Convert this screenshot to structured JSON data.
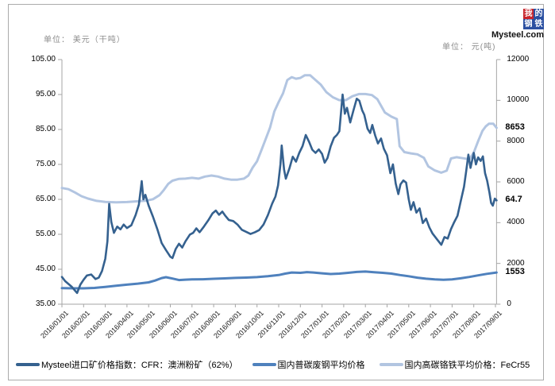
{
  "units": {
    "left": "单位： 美元（干吨）",
    "right": "单位： 元(吨)"
  },
  "logo": {
    "chars": [
      "我",
      "的",
      "钢",
      "铁"
    ],
    "domain": "Mysteel.com",
    "red": "#c8252c",
    "blue": "#2b50a1"
  },
  "colors": {
    "axis": "#a6a6a6",
    "frame": "#ababab",
    "series_dark": "#35618f",
    "series_medium": "#4f81bd",
    "series_light": "#b2c5e1"
  },
  "chart_data": {
    "type": "line",
    "grid": false,
    "legend_position": "bottom",
    "x_axis": {
      "labels": [
        "2016/01/01",
        "2016/02/01",
        "2016/03/01",
        "2016/04/01",
        "2016/05/01",
        "2016/06/01",
        "2016/07/01",
        "2016/08/01",
        "2016/09/01",
        "2016/10/01",
        "2016/11/01",
        "2016/12/01",
        "2017/01/01",
        "2017/02/01",
        "2017/03/01",
        "2017/04/01",
        "2017/05/01",
        "2017/06/01",
        "2017/07/01",
        "2017/08/01",
        "2017/09/01"
      ],
      "note_x_in_months_from_2016_01": true
    },
    "y_left": {
      "min": 35,
      "max": 105,
      "ticks": [
        "105.00",
        "95.00",
        "85.00",
        "75.00",
        "65.00",
        "55.00",
        "45.00",
        "35.00"
      ],
      "tick_values": [
        105,
        95,
        85,
        75,
        65,
        55,
        45,
        35
      ]
    },
    "y_right": {
      "min": 0,
      "max": 12000,
      "ticks": [
        "12000",
        "10000",
        "8000",
        "6000",
        "4000",
        "2000",
        "0"
      ],
      "tick_values": [
        12000,
        10000,
        8000,
        6000,
        4000,
        2000,
        0
      ]
    },
    "series": [
      {
        "name": "国内高碳铬铁平均价格：FeCr55",
        "axis": "right",
        "color": "#b2c5e1",
        "width": 3,
        "end_label": "8653",
        "points": [
          [
            0,
            5700
          ],
          [
            0.3,
            5640
          ],
          [
            0.6,
            5480
          ],
          [
            0.9,
            5300
          ],
          [
            1.2,
            5180
          ],
          [
            1.6,
            5070
          ],
          [
            2,
            5020
          ],
          [
            2.5,
            5000
          ],
          [
            3,
            5010
          ],
          [
            3.5,
            5050
          ],
          [
            3.9,
            5080
          ],
          [
            4.2,
            5150
          ],
          [
            4.5,
            5350
          ],
          [
            4.7,
            5600
          ],
          [
            4.9,
            5900
          ],
          [
            5.1,
            6060
          ],
          [
            5.4,
            6150
          ],
          [
            5.7,
            6160
          ],
          [
            6,
            6200
          ],
          [
            6.3,
            6160
          ],
          [
            6.6,
            6260
          ],
          [
            6.9,
            6310
          ],
          [
            7.2,
            6260
          ],
          [
            7.5,
            6160
          ],
          [
            7.8,
            6110
          ],
          [
            8.1,
            6110
          ],
          [
            8.4,
            6160
          ],
          [
            8.6,
            6310
          ],
          [
            8.8,
            6700
          ],
          [
            9,
            7010
          ],
          [
            9.2,
            7550
          ],
          [
            9.4,
            8100
          ],
          [
            9.6,
            8660
          ],
          [
            9.8,
            9450
          ],
          [
            10,
            9920
          ],
          [
            10.2,
            10350
          ],
          [
            10.4,
            11000
          ],
          [
            10.6,
            11140
          ],
          [
            10.8,
            11060
          ],
          [
            11,
            11100
          ],
          [
            11.2,
            11230
          ],
          [
            11.45,
            11230
          ],
          [
            11.7,
            11000
          ],
          [
            11.95,
            10760
          ],
          [
            12.2,
            10400
          ],
          [
            12.5,
            10150
          ],
          [
            12.8,
            10010
          ],
          [
            13.1,
            10010
          ],
          [
            13.4,
            10200
          ],
          [
            13.7,
            10310
          ],
          [
            14,
            10310
          ],
          [
            14.3,
            10260
          ],
          [
            14.55,
            10060
          ],
          [
            14.9,
            9400
          ],
          [
            15.2,
            9200
          ],
          [
            15.45,
            9080
          ],
          [
            15.58,
            7750
          ],
          [
            15.8,
            7460
          ],
          [
            16.1,
            7400
          ],
          [
            16.4,
            7350
          ],
          [
            16.7,
            7180
          ],
          [
            16.9,
            6760
          ],
          [
            17.2,
            6560
          ],
          [
            17.5,
            6450
          ],
          [
            17.75,
            6550
          ],
          [
            17.95,
            7150
          ],
          [
            18.2,
            7210
          ],
          [
            18.5,
            7160
          ],
          [
            18.8,
            7110
          ],
          [
            19,
            7440
          ],
          [
            19.2,
            8000
          ],
          [
            19.4,
            8500
          ],
          [
            19.55,
            8720
          ],
          [
            19.7,
            8850
          ],
          [
            19.9,
            8850
          ],
          [
            20.05,
            8653
          ]
        ]
      },
      {
        "name": "国内普碳废钢平均价格",
        "axis": "right",
        "color": "#4f81bd",
        "width": 3,
        "end_label": "1553",
        "points": [
          [
            0,
            790
          ],
          [
            0.5,
            780
          ],
          [
            1,
            780
          ],
          [
            1.5,
            800
          ],
          [
            2,
            850
          ],
          [
            2.5,
            905
          ],
          [
            3,
            960
          ],
          [
            3.5,
            1010
          ],
          [
            4,
            1070
          ],
          [
            4.3,
            1160
          ],
          [
            4.6,
            1280
          ],
          [
            4.8,
            1325
          ],
          [
            5.1,
            1260
          ],
          [
            5.4,
            1185
          ],
          [
            5.7,
            1205
          ],
          [
            6,
            1215
          ],
          [
            6.5,
            1225
          ],
          [
            7,
            1245
          ],
          [
            7.5,
            1265
          ],
          [
            8,
            1290
          ],
          [
            8.5,
            1305
          ],
          [
            9,
            1330
          ],
          [
            9.5,
            1370
          ],
          [
            10,
            1430
          ],
          [
            10.3,
            1500
          ],
          [
            10.6,
            1555
          ],
          [
            11,
            1540
          ],
          [
            11.3,
            1575
          ],
          [
            11.6,
            1555
          ],
          [
            12,
            1515
          ],
          [
            12.4,
            1480
          ],
          [
            12.8,
            1500
          ],
          [
            13.2,
            1540
          ],
          [
            13.6,
            1580
          ],
          [
            14,
            1600
          ],
          [
            14.4,
            1570
          ],
          [
            14.8,
            1540
          ],
          [
            15.2,
            1500
          ],
          [
            15.6,
            1430
          ],
          [
            16,
            1370
          ],
          [
            16.4,
            1300
          ],
          [
            16.8,
            1250
          ],
          [
            17.2,
            1215
          ],
          [
            17.6,
            1195
          ],
          [
            18,
            1220
          ],
          [
            18.4,
            1270
          ],
          [
            18.8,
            1335
          ],
          [
            19.2,
            1415
          ],
          [
            19.6,
            1490
          ],
          [
            20.05,
            1553
          ]
        ]
      },
      {
        "name": "Mysteel进口矿价格指数：CFR：澳洲粉矿（62%）",
        "axis": "left",
        "color": "#35618f",
        "width": 2.6,
        "end_label": "64.7",
        "points": [
          [
            0,
            42.8
          ],
          [
            0.15,
            41.6
          ],
          [
            0.3,
            40.8
          ],
          [
            0.45,
            40
          ],
          [
            0.6,
            38.9
          ],
          [
            0.7,
            38.2
          ],
          [
            0.85,
            40.6
          ],
          [
            1,
            42
          ],
          [
            1.15,
            43.2
          ],
          [
            1.35,
            43.5
          ],
          [
            1.55,
            42.2
          ],
          [
            1.7,
            42.6
          ],
          [
            1.85,
            44.5
          ],
          [
            2,
            48
          ],
          [
            2.1,
            53
          ],
          [
            2.18,
            63.7
          ],
          [
            2.28,
            58.5
          ],
          [
            2.4,
            55.4
          ],
          [
            2.55,
            57.2
          ],
          [
            2.7,
            56.4
          ],
          [
            2.85,
            57.8
          ],
          [
            3,
            56.8
          ],
          [
            3.2,
            57.6
          ],
          [
            3.4,
            60.5
          ],
          [
            3.55,
            63.5
          ],
          [
            3.68,
            70.2
          ],
          [
            3.76,
            65
          ],
          [
            3.85,
            66.3
          ],
          [
            4,
            63.2
          ],
          [
            4.2,
            60
          ],
          [
            4.4,
            56.5
          ],
          [
            4.6,
            52.5
          ],
          [
            4.8,
            50.5
          ],
          [
            5,
            48.6
          ],
          [
            5.1,
            48.2
          ],
          [
            5.25,
            50.8
          ],
          [
            5.4,
            52.3
          ],
          [
            5.55,
            51.2
          ],
          [
            5.7,
            53
          ],
          [
            5.9,
            54.9
          ],
          [
            6.05,
            55.4
          ],
          [
            6.2,
            56.7
          ],
          [
            6.35,
            55.6
          ],
          [
            6.55,
            57.2
          ],
          [
            6.75,
            59
          ],
          [
            6.95,
            61
          ],
          [
            7.1,
            61.8
          ],
          [
            7.25,
            60.6
          ],
          [
            7.4,
            61.5
          ],
          [
            7.55,
            60.2
          ],
          [
            7.7,
            59.1
          ],
          [
            7.9,
            58.8
          ],
          [
            8.1,
            57.8
          ],
          [
            8.3,
            56.3
          ],
          [
            8.5,
            55.7
          ],
          [
            8.7,
            55.1
          ],
          [
            8.9,
            55.6
          ],
          [
            9.1,
            56.2
          ],
          [
            9.3,
            57.8
          ],
          [
            9.5,
            60.5
          ],
          [
            9.7,
            63.8
          ],
          [
            9.85,
            65.8
          ],
          [
            9.97,
            69
          ],
          [
            10.08,
            75
          ],
          [
            10.14,
            80.4
          ],
          [
            10.25,
            73.5
          ],
          [
            10.33,
            70.9
          ],
          [
            10.5,
            74
          ],
          [
            10.65,
            77.2
          ],
          [
            10.8,
            75.8
          ],
          [
            10.95,
            78.3
          ],
          [
            11.1,
            80.2
          ],
          [
            11.25,
            83.4
          ],
          [
            11.4,
            81.5
          ],
          [
            11.55,
            79.2
          ],
          [
            11.7,
            78.3
          ],
          [
            11.85,
            79.3
          ],
          [
            12,
            78
          ],
          [
            12.12,
            75.5
          ],
          [
            12.25,
            76.8
          ],
          [
            12.4,
            80.2
          ],
          [
            12.55,
            82.6
          ],
          [
            12.68,
            83.4
          ],
          [
            12.8,
            84.5
          ],
          [
            12.95,
            95
          ],
          [
            13.05,
            89.5
          ],
          [
            13.15,
            91.2
          ],
          [
            13.3,
            87
          ],
          [
            13.45,
            90.5
          ],
          [
            13.6,
            93.8
          ],
          [
            13.72,
            93.2
          ],
          [
            13.85,
            90.5
          ],
          [
            13.95,
            89.2
          ],
          [
            14.1,
            85.2
          ],
          [
            14.22,
            84
          ],
          [
            14.32,
            86.3
          ],
          [
            14.45,
            83.3
          ],
          [
            14.58,
            81
          ],
          [
            14.72,
            82.4
          ],
          [
            14.85,
            79.5
          ],
          [
            15,
            77.6
          ],
          [
            15.15,
            72.5
          ],
          [
            15.27,
            75
          ],
          [
            15.4,
            69.5
          ],
          [
            15.52,
            66.5
          ],
          [
            15.62,
            69.3
          ],
          [
            15.75,
            70.4
          ],
          [
            15.88,
            69.8
          ],
          [
            16,
            65
          ],
          [
            16.1,
            62
          ],
          [
            16.22,
            64.2
          ],
          [
            16.35,
            61.2
          ],
          [
            16.5,
            62.4
          ],
          [
            16.65,
            58.2
          ],
          [
            16.8,
            59.5
          ],
          [
            16.95,
            57
          ],
          [
            17.1,
            55.2
          ],
          [
            17.3,
            53.6
          ],
          [
            17.5,
            52
          ],
          [
            17.65,
            54.2
          ],
          [
            17.8,
            53.8
          ],
          [
            17.95,
            56.5
          ],
          [
            18.1,
            58.5
          ],
          [
            18.25,
            60.3
          ],
          [
            18.4,
            64.5
          ],
          [
            18.55,
            68.6
          ],
          [
            18.65,
            73
          ],
          [
            18.75,
            77.8
          ],
          [
            18.85,
            74
          ],
          [
            19,
            78.3
          ],
          [
            19.1,
            75
          ],
          [
            19.2,
            77
          ],
          [
            19.32,
            76
          ],
          [
            19.42,
            77.3
          ],
          [
            19.52,
            72.5
          ],
          [
            19.62,
            70.3
          ],
          [
            19.72,
            67
          ],
          [
            19.8,
            64
          ],
          [
            19.88,
            63.2
          ],
          [
            19.97,
            65.2
          ],
          [
            20.05,
            64.7
          ]
        ]
      }
    ]
  },
  "legend": {
    "entries": [
      {
        "label": "Mysteel进口矿价格指数：CFR：澳洲粉矿（62%）",
        "color": "#35618f"
      },
      {
        "label": "国内普碳废钢平均价格",
        "color": "#4f81bd"
      },
      {
        "label": "国内高碳铬铁平均价格：FeCr55",
        "color": "#b2c5e1"
      }
    ]
  }
}
